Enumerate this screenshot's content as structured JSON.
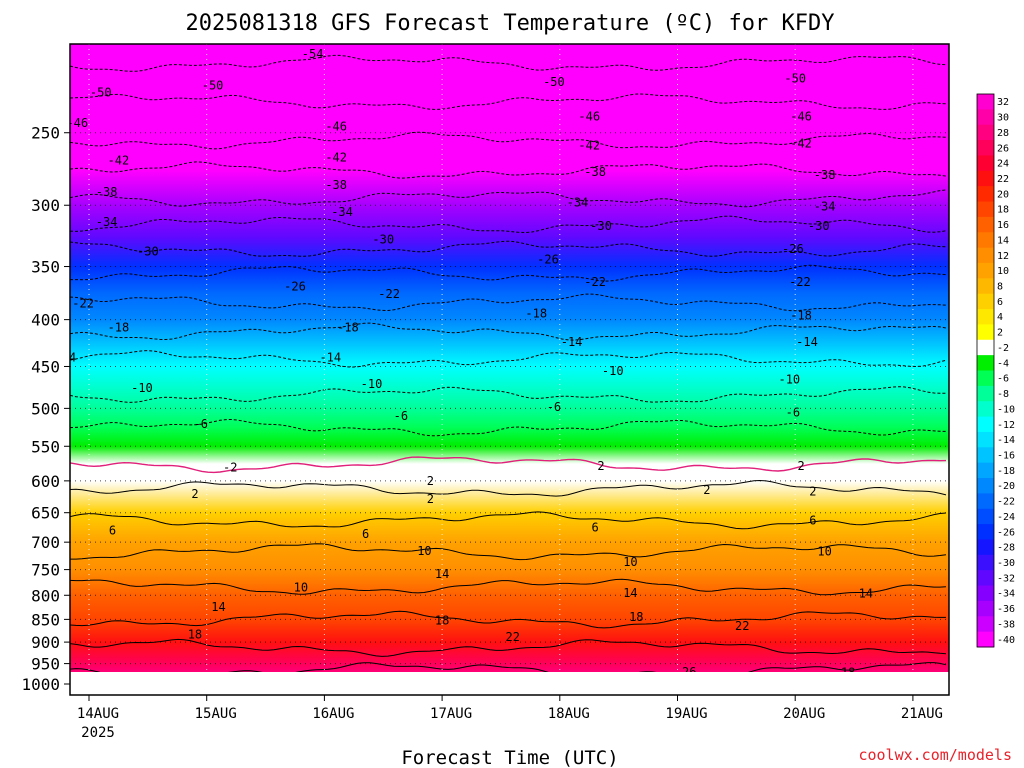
{
  "title": "2025081318 GFS Forecast Temperature (ºC) for KFDY",
  "credit": "coolwx.com/models",
  "chart_data": {
    "type": "heatmap",
    "title": "2025081318 GFS Forecast Temperature (ºC) for KFDY",
    "xlabel": "Forecast Time (UTC)",
    "ylabel": "",
    "y_scale": "log-pressure",
    "y_units": "hPa",
    "ylim": [
      1000,
      200
    ],
    "yticks": [
      "250",
      "300",
      "350",
      "400",
      "450",
      "500",
      "550",
      "600",
      "650",
      "700",
      "750",
      "800",
      "850",
      "900",
      "950",
      "1000"
    ],
    "xticks": [
      {
        "label": "14AUG",
        "sub": "2025"
      },
      {
        "label": "15AUG",
        "sub": ""
      },
      {
        "label": "16AUG",
        "sub": ""
      },
      {
        "label": "17AUG",
        "sub": ""
      },
      {
        "label": "18AUG",
        "sub": ""
      },
      {
        "label": "19AUG",
        "sub": ""
      },
      {
        "label": "20AUG",
        "sub": ""
      },
      {
        "label": "21AUG",
        "sub": ""
      }
    ],
    "colorbar": {
      "labels": [
        "32",
        "30",
        "28",
        "26",
        "24",
        "22",
        "20",
        "18",
        "16",
        "14",
        "12",
        "10",
        "8",
        "6",
        "4",
        "2",
        "-2",
        "-4",
        "-6",
        "-8",
        "-10",
        "-12",
        "-14",
        "-16",
        "-18",
        "-20",
        "-22",
        "-24",
        "-26",
        "-28",
        "-30",
        "-32",
        "-34",
        "-36",
        "-38",
        "-40"
      ],
      "colors": [
        "#ff00d0",
        "#ff00a8",
        "#ff0080",
        "#ff005a",
        "#ff0033",
        "#ff1010",
        "#ff2a00",
        "#ff4500",
        "#ff6000",
        "#ff7800",
        "#ff8f00",
        "#ffa200",
        "#ffb800",
        "#ffd000",
        "#ffe800",
        "#ffff00",
        "#ffffff",
        "#00ee00",
        "#00ff55",
        "#00ff99",
        "#00ffcc",
        "#00ffff",
        "#00e2ff",
        "#00c4ff",
        "#00a6ff",
        "#0088ff",
        "#006aff",
        "#004cff",
        "#0030ff",
        "#1515ff",
        "#3a10ff",
        "#6008ff",
        "#8500ff",
        "#a800ff",
        "#cc00ff",
        "#ff00ff"
      ]
    },
    "level_temperatures": [
      {
        "p": 200,
        "t": -56
      },
      {
        "p": 225,
        "t": -51
      },
      {
        "p": 250,
        "t": -47
      },
      {
        "p": 275,
        "t": -42
      },
      {
        "p": 300,
        "t": -37
      },
      {
        "p": 325,
        "t": -32
      },
      {
        "p": 350,
        "t": -27
      },
      {
        "p": 375,
        "t": -23
      },
      {
        "p": 400,
        "t": -20
      },
      {
        "p": 425,
        "t": -16
      },
      {
        "p": 450,
        "t": -13
      },
      {
        "p": 475,
        "t": -11
      },
      {
        "p": 500,
        "t": -8
      },
      {
        "p": 525,
        "t": -6
      },
      {
        "p": 550,
        "t": -4
      },
      {
        "p": 575,
        "t": -2
      },
      {
        "p": 600,
        "t": 1
      },
      {
        "p": 650,
        "t": 5
      },
      {
        "p": 700,
        "t": 9
      },
      {
        "p": 750,
        "t": 12
      },
      {
        "p": 800,
        "t": 15
      },
      {
        "p": 850,
        "t": 18
      },
      {
        "p": 900,
        "t": 21
      },
      {
        "p": 950,
        "t": 25
      },
      {
        "p": 1000,
        "t": 28
      }
    ],
    "contour_labels": [
      {
        "text": "-54",
        "day": 1.9,
        "p": 205
      },
      {
        "text": "-50",
        "day": 0.1,
        "p": 226
      },
      {
        "text": "-50",
        "day": 1.05,
        "p": 222
      },
      {
        "text": "-50",
        "day": 3.95,
        "p": 220
      },
      {
        "text": "-50",
        "day": 6.0,
        "p": 218
      },
      {
        "text": "-46",
        "day": -0.1,
        "p": 244
      },
      {
        "text": "-46",
        "day": 2.1,
        "p": 246
      },
      {
        "text": "-46",
        "day": 4.25,
        "p": 240
      },
      {
        "text": "-46",
        "day": 6.05,
        "p": 240
      },
      {
        "text": "-42",
        "day": 0.25,
        "p": 268
      },
      {
        "text": "-42",
        "day": 2.1,
        "p": 266
      },
      {
        "text": "-42",
        "day": 4.25,
        "p": 258
      },
      {
        "text": "-42",
        "day": 6.05,
        "p": 257
      },
      {
        "text": "-38",
        "day": 0.15,
        "p": 290
      },
      {
        "text": "-38",
        "day": 2.1,
        "p": 285
      },
      {
        "text": "-38",
        "day": 4.3,
        "p": 276
      },
      {
        "text": "-38",
        "day": 6.25,
        "p": 278
      },
      {
        "text": "-34",
        "day": 0.15,
        "p": 313
      },
      {
        "text": "-34",
        "day": 2.15,
        "p": 305
      },
      {
        "text": "-34",
        "day": 4.15,
        "p": 298
      },
      {
        "text": "-34",
        "day": 6.25,
        "p": 301
      },
      {
        "text": "-30",
        "day": 0.5,
        "p": 337
      },
      {
        "text": "-30",
        "day": 2.5,
        "p": 327
      },
      {
        "text": "-30",
        "day": 4.35,
        "p": 316
      },
      {
        "text": "-30",
        "day": 6.2,
        "p": 316
      },
      {
        "text": "-26",
        "day": 1.75,
        "p": 368
      },
      {
        "text": "-26",
        "day": 3.9,
        "p": 344
      },
      {
        "text": "-26",
        "day": 5.98,
        "p": 335
      },
      {
        "text": "-22",
        "day": -0.05,
        "p": 384
      },
      {
        "text": "-22",
        "day": 2.55,
        "p": 375
      },
      {
        "text": "-22",
        "day": 4.3,
        "p": 364
      },
      {
        "text": "-22",
        "day": 6.04,
        "p": 364
      },
      {
        "text": "-18",
        "day": 0.25,
        "p": 408
      },
      {
        "text": "-18",
        "day": 2.2,
        "p": 408
      },
      {
        "text": "-18",
        "day": 3.8,
        "p": 394
      },
      {
        "text": "-18",
        "day": 6.05,
        "p": 396
      },
      {
        "text": "-14",
        "day": -0.2,
        "p": 440
      },
      {
        "text": "-14",
        "day": 2.05,
        "p": 440
      },
      {
        "text": "-14",
        "day": 4.1,
        "p": 423
      },
      {
        "text": "-14",
        "day": 6.1,
        "p": 423
      },
      {
        "text": "-10",
        "day": 0.45,
        "p": 475
      },
      {
        "text": "-10",
        "day": 2.4,
        "p": 470
      },
      {
        "text": "-10",
        "day": 4.45,
        "p": 455
      },
      {
        "text": "-10",
        "day": 5.95,
        "p": 465
      },
      {
        "text": "-6",
        "day": 0.95,
        "p": 520
      },
      {
        "text": "-6",
        "day": 2.65,
        "p": 510
      },
      {
        "text": "-6",
        "day": 3.95,
        "p": 498
      },
      {
        "text": "-6",
        "day": 5.98,
        "p": 505
      },
      {
        "text": "-2",
        "day": 1.2,
        "p": 580
      },
      {
        "text": "2",
        "day": 0.9,
        "p": 620
      },
      {
        "text": "2",
        "day": 2.9,
        "p": 600
      },
      {
        "text": "2",
        "day": 2.9,
        "p": 628
      },
      {
        "text": "2",
        "day": 4.35,
        "p": 578
      },
      {
        "text": "2",
        "day": 5.25,
        "p": 614
      },
      {
        "text": "2",
        "day": 6.05,
        "p": 578
      },
      {
        "text": "2",
        "day": 6.15,
        "p": 616
      },
      {
        "text": "6",
        "day": 0.2,
        "p": 680
      },
      {
        "text": "6",
        "day": 2.35,
        "p": 686
      },
      {
        "text": "6",
        "day": 4.3,
        "p": 675
      },
      {
        "text": "6",
        "day": 6.15,
        "p": 663
      },
      {
        "text": "10",
        "day": 1.8,
        "p": 785
      },
      {
        "text": "10",
        "day": 2.85,
        "p": 716
      },
      {
        "text": "10",
        "day": 4.6,
        "p": 736
      },
      {
        "text": "10",
        "day": 6.25,
        "p": 717
      },
      {
        "text": "14",
        "day": 1.1,
        "p": 824
      },
      {
        "text": "14",
        "day": 3.0,
        "p": 758
      },
      {
        "text": "14",
        "day": 4.6,
        "p": 795
      },
      {
        "text": "14",
        "day": 6.6,
        "p": 796
      },
      {
        "text": "18",
        "day": 0.9,
        "p": 883
      },
      {
        "text": "18",
        "day": 3.0,
        "p": 852
      },
      {
        "text": "18",
        "day": 4.65,
        "p": 845
      },
      {
        "text": "18",
        "day": 6.45,
        "p": 972
      },
      {
        "text": "22",
        "day": 3.6,
        "p": 888
      },
      {
        "text": "22",
        "day": 5.55,
        "p": 864
      },
      {
        "text": "26",
        "day": 5.1,
        "p": 970
      }
    ]
  }
}
